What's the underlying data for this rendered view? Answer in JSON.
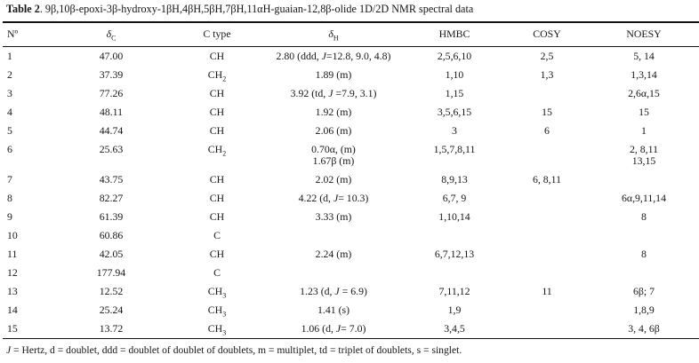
{
  "title": {
    "label": "Table 2",
    "rest": ". 9β,10β-epoxi-3β-hydroxy-1βH,4βH,5βH,7βH,11αH-guaian-12,8β-olide 1D/2D NMR spectral data"
  },
  "table": {
    "headers": {
      "no": "Nº",
      "dc_base": "δ",
      "dc_sub": "C",
      "ctype": "C type",
      "dh_base": "δ",
      "dh_sub": "H",
      "hmbc": "HMBC",
      "cosy": "COSY",
      "noesy": "NOESY"
    },
    "rows": [
      {
        "no": "1",
        "dc": "47.00",
        "ctype": "CH",
        "ctype_sub": "",
        "dh": "2.80 (ddd, J=12.8, 9.0, 4.8)",
        "hmbc": "2,5,6,10",
        "cosy": "2,5",
        "noesy": "5, 14"
      },
      {
        "no": "2",
        "dc": "37.39",
        "ctype": "CH",
        "ctype_sub": "2",
        "dh": "1.89 (m)",
        "hmbc": "1,10",
        "cosy": "1,3",
        "noesy": "1,3,14"
      },
      {
        "no": "3",
        "dc": "77.26",
        "ctype": "CH",
        "ctype_sub": "",
        "dh": "3.92 (td, J =7.9, 3.1)",
        "hmbc": "1,15",
        "cosy": "",
        "noesy": "2,6α,15"
      },
      {
        "no": "4",
        "dc": "48.11",
        "ctype": "CH",
        "ctype_sub": "",
        "dh": "1.92 (m)",
        "hmbc": "3,5,6,15",
        "cosy": "15",
        "noesy": "15"
      },
      {
        "no": "5",
        "dc": "44.74",
        "ctype": "CH",
        "ctype_sub": "",
        "dh": "2.06 (m)",
        "hmbc": "3",
        "cosy": "6",
        "noesy": "1"
      },
      {
        "no": "6",
        "dc": "25.63",
        "ctype": "CH",
        "ctype_sub": "2",
        "dh": "0.70α, (m)\n1.67β (m)",
        "hmbc": "1,5,7,8,11",
        "cosy": "",
        "noesy": "2, 8,11\n13,15"
      },
      {
        "no": "7",
        "dc": "43.75",
        "ctype": "CH",
        "ctype_sub": "",
        "dh": "2.02 (m)",
        "hmbc": "8,9,13",
        "cosy": "6, 8,11",
        "noesy": ""
      },
      {
        "no": "8",
        "dc": "82.27",
        "ctype": "CH",
        "ctype_sub": "",
        "dh": "4.22 (d, J= 10.3)",
        "hmbc": "6,7, 9",
        "cosy": "",
        "noesy": "6α,9,11,14"
      },
      {
        "no": "9",
        "dc": "61.39",
        "ctype": "CH",
        "ctype_sub": "",
        "dh": "3.33 (m)",
        "hmbc": "1,10,14",
        "cosy": "",
        "noesy": "8"
      },
      {
        "no": "10",
        "dc": "60.86",
        "ctype": "C",
        "ctype_sub": "",
        "dh": "",
        "hmbc": "",
        "cosy": "",
        "noesy": ""
      },
      {
        "no": "11",
        "dc": "42.05",
        "ctype": "CH",
        "ctype_sub": "",
        "dh": "2.24 (m)",
        "hmbc": "6,7,12,13",
        "cosy": "",
        "noesy": "8"
      },
      {
        "no": "12",
        "dc": "177.94",
        "ctype": "C",
        "ctype_sub": "",
        "dh": "",
        "hmbc": "",
        "cosy": "",
        "noesy": ""
      },
      {
        "no": "13",
        "dc": "12.52",
        "ctype": "CH",
        "ctype_sub": "3",
        "dh": "1.23 (d, J = 6.9)",
        "hmbc": "7,11,12",
        "cosy": "11",
        "noesy": "6β; 7"
      },
      {
        "no": "14",
        "dc": "25.24",
        "ctype": "CH",
        "ctype_sub": "3",
        "dh": "1.41 (s)",
        "hmbc": "1,9",
        "cosy": "",
        "noesy": "1,8,9"
      },
      {
        "no": "15",
        "dc": "13.72",
        "ctype": "CH",
        "ctype_sub": "3",
        "dh": "1.06 (d, J= 7.0)",
        "hmbc": "3,4,5",
        "cosy": "",
        "noesy": "3, 4, 6β"
      }
    ]
  },
  "footnote": "J = Hertz, d = doublet, ddd = doublet of doublet of doublets, m = multiplet, td = triplet of doublets, s = singlet."
}
